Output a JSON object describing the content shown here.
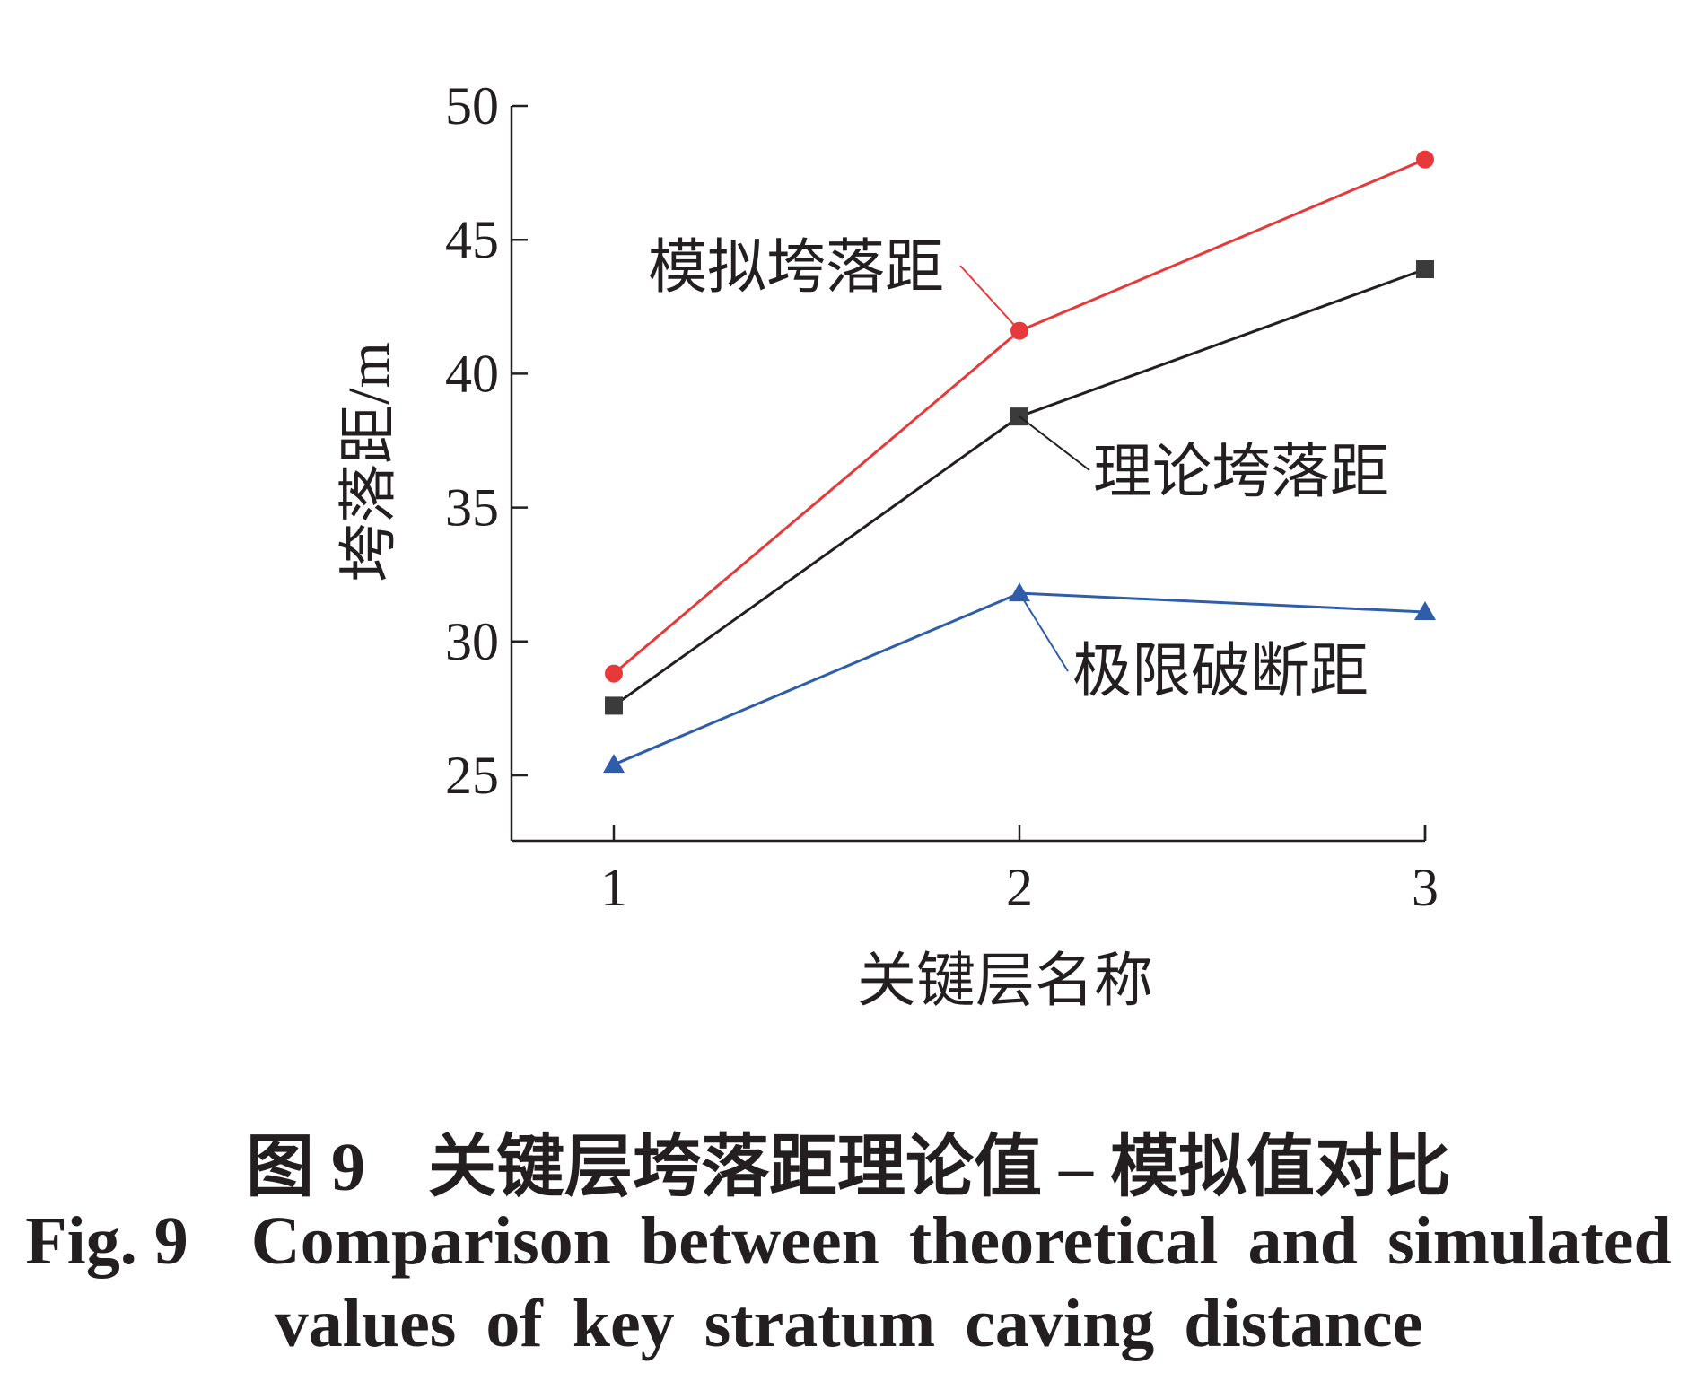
{
  "chart_data": {
    "type": "line",
    "xlabel": "关键层名称",
    "ylabel": "垮落距/m",
    "x": [
      1,
      2,
      3
    ],
    "xticks": [
      "1",
      "2",
      "3"
    ],
    "yticks": [
      "25",
      "30",
      "35",
      "40",
      "45",
      "50"
    ],
    "ylim": [
      22.5,
      50
    ],
    "xlim": [
      0.75,
      3
    ],
    "grid": false,
    "legend": "inline annotations",
    "series": [
      {
        "name": "模拟垮落距",
        "values": [
          28.8,
          41.6,
          48.0
        ],
        "color": "#e8393a",
        "marker": "circle"
      },
      {
        "name": "理论垮落距",
        "values": [
          27.6,
          38.4,
          43.9
        ],
        "color": "#231f20",
        "marker": "square"
      },
      {
        "name": "极限破断距",
        "values": [
          25.4,
          31.8,
          31.1
        ],
        "color": "#2f5daa",
        "marker": "triangle"
      }
    ]
  },
  "caption": {
    "zh_label": "图 9",
    "zh_text": "关键层垮落距理论值 – 模拟值对比",
    "en_label": "Fig. 9",
    "en_line1": "Comparison between theoretical and simulated",
    "en_line2": "values of key stratum caving distance"
  }
}
